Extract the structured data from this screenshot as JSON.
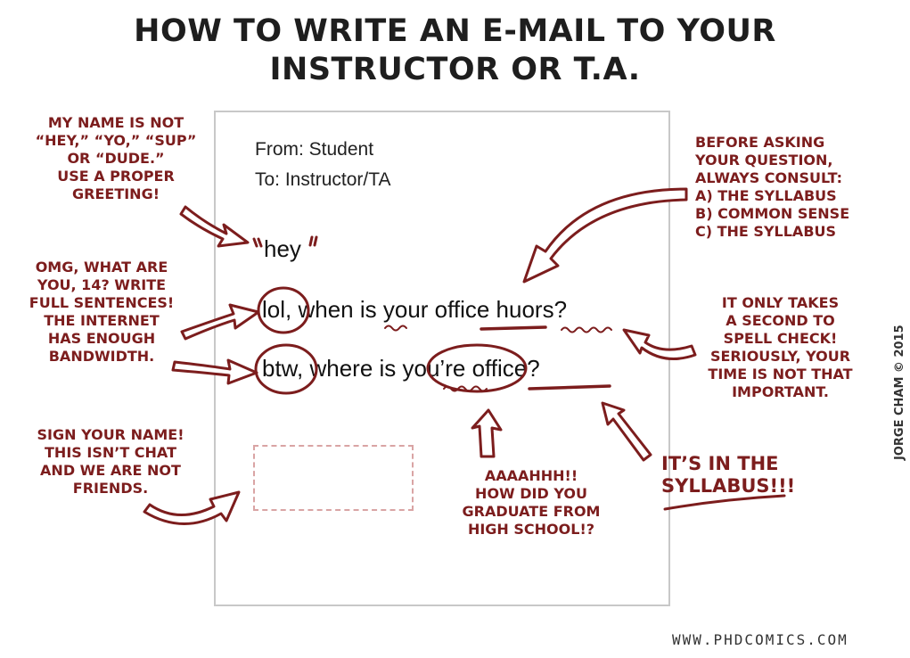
{
  "title": "HOW TO WRITE AN E-MAIL TO YOUR\nINSTRUCTOR OR T.A.",
  "email": {
    "from": "From: Student",
    "to": "To: Instructor/TA",
    "greeting": "hey",
    "line1": {
      "lol": "lol,",
      "rest": " when is your office huors?"
    },
    "line2": {
      "btw": "btw,",
      "mid": " where is ",
      "youre": "you’re",
      "end": " office?"
    }
  },
  "notes": {
    "greeting": "MY NAME IS NOT\n“HEY,” “YO,” “SUP”\nOR “DUDE.”\nUSE A PROPER\nGREETING!",
    "sentences": "OMG, WHAT ARE\nYOU, 14? WRITE\nFULL SENTENCES!\nTHE INTERNET\nHAS ENOUGH\nBANDWIDTH.",
    "sign": "SIGN YOUR NAME!\nTHIS ISN’T CHAT\nAND WE ARE NOT\nFRIENDS.",
    "syllabus_check": "BEFORE ASKING\nYOUR QUESTION,\nALWAYS CONSULT:\nA) THE SYLLABUS\nB) COMMON SENSE\nC) THE SYLLABUS",
    "spell_check": "IT ONLY TAKES\nA SECOND TO\nSPELL CHECK!\nSERIOUSLY, YOUR\nTIME IS NOT THAT\nIMPORTANT.",
    "high_school": "AAAAHHH!!\nHOW DID YOU\nGRADUATE FROM\nHIGH SCHOOL!?",
    "in_syllabus": "IT’S IN THE\nSYLLABUS!!!"
  },
  "credit": "JORGE CHAM © 2015",
  "url": "WWW.PHDCOMICS.COM",
  "colors": {
    "ink": "#7c1d1d",
    "box": "#c8c8c8",
    "dashed": "#d9a4a4",
    "text": "#111111"
  }
}
